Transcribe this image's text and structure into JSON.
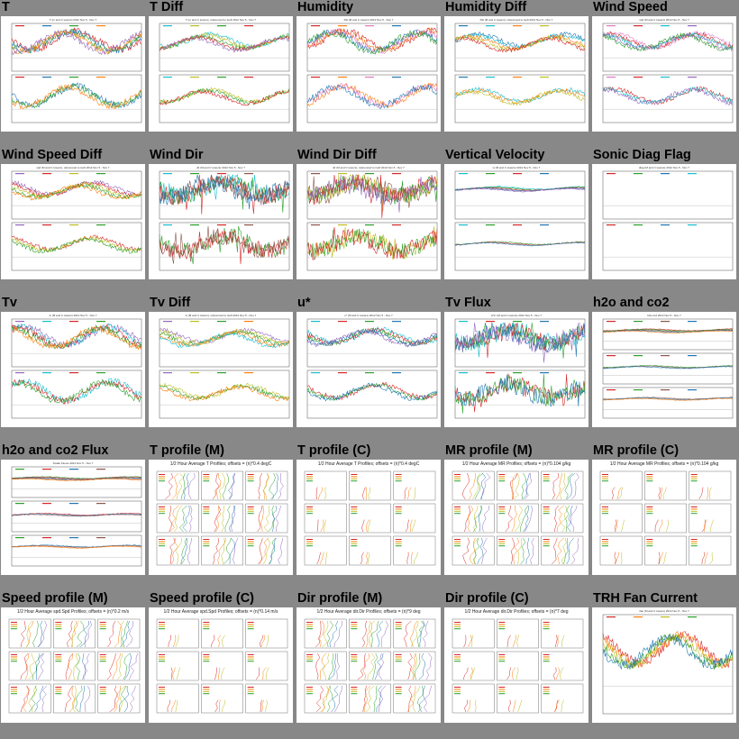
{
  "page": {
    "background": "#888888"
  },
  "thumbnails": [
    {
      "title": "T",
      "kind": "ts",
      "panels": 2,
      "overlap": "low",
      "colors": [
        "#d62728",
        "#1f77b4",
        "#2ca02c",
        "#ff7f0e",
        "#9467bd",
        "#e377c2"
      ],
      "caption": "T (m and C towers) 2012 Nov 5 - Nov 7"
    },
    {
      "title": "T Diff",
      "kind": "ts",
      "panels": 2,
      "overlap": "high",
      "colors": [
        "#17becf",
        "#bcbd22",
        "#2ca02c",
        "#d62728",
        "#9467bd",
        "#ff7f0e"
      ],
      "caption": "T (m and C towers), referenced to tsoft 2012 Nov 5 - Nov 7"
    },
    {
      "title": "Humidity",
      "kind": "ts",
      "panels": 2,
      "overlap": "low",
      "colors": [
        "#d62728",
        "#ff7f0e",
        "#e377c2",
        "#1f77b4",
        "#2ca02c",
        "#9467bd"
      ],
      "caption": "RH (M and C towers) 2012 Nov 5 - Nov 7"
    },
    {
      "title": "Humidity Diff",
      "kind": "ts",
      "panels": 2,
      "overlap": "high",
      "colors": [
        "#1f77b4",
        "#17becf",
        "#ff7f0e",
        "#bcbd22",
        "#d62728",
        "#2ca02c"
      ],
      "caption": "RH (M and C towers), referenced to tsoft 2012 Nov 5 - Nov 7"
    },
    {
      "title": "Wind Speed",
      "kind": "ts",
      "panels": 2,
      "overlap": "mid",
      "colors": [
        "#e377c2",
        "#d62728",
        "#17becf",
        "#9467bd",
        "#2ca02c",
        "#1f77b4"
      ],
      "caption": "spd (M and C towers) 2012 Nov 5 - Nov 7"
    },
    {
      "title": "Wind Speed Diff",
      "kind": "ts",
      "panels": 2,
      "overlap": "high",
      "colors": [
        "#9467bd",
        "#d62728",
        "#bcbd22",
        "#2ca02c",
        "#ff7f0e",
        "#17becf"
      ],
      "caption": "spd (M and C towers), referenced to tsoft 2012 Nov 5 - Nov 7"
    },
    {
      "title": "Wind Dir",
      "kind": "ts",
      "panels": 2,
      "overlap": "spiky",
      "colors": [
        "#17becf",
        "#2ca02c",
        "#d62728",
        "#8c564b",
        "#1f77b4",
        "#ff7f0e"
      ],
      "caption": "dir (M and C towers) 2012 Nov 5 - Nov 7"
    },
    {
      "title": "Wind Dir Diff",
      "kind": "ts",
      "panels": 2,
      "overlap": "spiky",
      "colors": [
        "#8c564b",
        "#bcbd22",
        "#2ca02c",
        "#d62728",
        "#9467bd",
        "#17becf"
      ],
      "caption": "dir (M and C towers), referenced to tsoft 2012 Nov 5 - Nov 7"
    },
    {
      "title": "Vertical Velocity",
      "kind": "ts",
      "panels": 2,
      "overlap": "flat",
      "colors": [
        "#17becf",
        "#2ca02c",
        "#d62728",
        "#1f77b4",
        "#9467bd",
        "#ff7f0e"
      ],
      "caption": "w (M and C towers) 2012 Nov 5 - Nov 7"
    },
    {
      "title": "Sonic Diag Flag",
      "kind": "ts",
      "panels": 2,
      "overlap": "none",
      "colors": [
        "#d62728",
        "#2ca02c",
        "#1f77b4",
        "#17becf",
        "#9467bd",
        "#ff7f0e"
      ],
      "caption": "diag (M and C towers) 2012 Nov 5 - Nov 7"
    },
    {
      "title": "Tv",
      "kind": "ts",
      "panels": 2,
      "overlap": "low",
      "colors": [
        "#9467bd",
        "#17becf",
        "#d62728",
        "#2ca02c",
        "#ff7f0e",
        "#1f77b4"
      ],
      "caption": "tc (M and C towers) 2012 Nov 5 - Nov 7"
    },
    {
      "title": "Tv Diff",
      "kind": "ts",
      "panels": 2,
      "overlap": "high",
      "colors": [
        "#9467bd",
        "#bcbd22",
        "#2ca02c",
        "#ff7f0e",
        "#17becf",
        "#d62728"
      ],
      "caption": "tc (M and C towers), referenced to tsoft 2012 Nov 5 - Nov 7"
    },
    {
      "title": "u*",
      "kind": "ts",
      "panels": 2,
      "overlap": "mid",
      "colors": [
        "#17becf",
        "#d62728",
        "#2ca02c",
        "#1f77b4",
        "#9467bd",
        "#ff7f0e"
      ],
      "caption": "u* (M and C towers) 2012 Nov 5 - Nov 7"
    },
    {
      "title": "Tv Flux",
      "kind": "ts",
      "panels": 2,
      "overlap": "spiky",
      "colors": [
        "#17becf",
        "#d62728",
        "#2ca02c",
        "#1f77b4",
        "#9467bd",
        "#ff7f0e"
      ],
      "caption": "w'tc' (M and C towers) 2012 Nov 5 - Nov 7"
    },
    {
      "title": "h2o and co2",
      "kind": "ts",
      "panels": 3,
      "overlap": "flat",
      "colors": [
        "#d62728",
        "#2ca02c",
        "#8c564b",
        "#1f77b4",
        "#ff7f0e",
        "#9467bd"
      ],
      "caption": "h2o,co2 2012 Nov 5 - Nov 7"
    },
    {
      "title": "h2o and co2 Flux",
      "kind": "ts",
      "panels": 3,
      "overlap": "flat",
      "colors": [
        "#2ca02c",
        "#d62728",
        "#1f77b4",
        "#8c564b",
        "#ff7f0e",
        "#9467bd"
      ],
      "caption": "Scalar Fluxes 2012 Nov 5 - Nov 7"
    },
    {
      "title": "T profile (M)",
      "kind": "prof",
      "style": "dense",
      "colors": [
        "#d62728",
        "#ff7f0e",
        "#bcbd22",
        "#2ca02c",
        "#1f77b4",
        "#9467bd"
      ],
      "caption": "1/2 Hour Average T Profiles; offsets = (n)*0.4 degC"
    },
    {
      "title": "T profile (C)",
      "kind": "prof",
      "style": "sparse",
      "colors": [
        "#d62728",
        "#ff7f0e",
        "#bcbd22",
        "#2ca02c",
        "#1f77b4",
        "#9467bd"
      ],
      "caption": "1/2 Hour Average T Profiles; offsets = (n)*0.4 degC"
    },
    {
      "title": "MR profile (M)",
      "kind": "prof",
      "style": "dense",
      "colors": [
        "#d62728",
        "#ff7f0e",
        "#bcbd22",
        "#2ca02c",
        "#1f77b4",
        "#9467bd"
      ],
      "caption": "1/2 Hour Average MR Profiles; offsets = (n)*0.104 g/kg"
    },
    {
      "title": "MR profile (C)",
      "kind": "prof",
      "style": "sparse",
      "colors": [
        "#d62728",
        "#ff7f0e",
        "#bcbd22",
        "#2ca02c",
        "#1f77b4",
        "#9467bd"
      ],
      "caption": "1/2 Hour Average MR Profiles; offsets = (n)*0.104 g/kg"
    },
    {
      "title": "Speed profile (M)",
      "kind": "prof",
      "style": "dense",
      "colors": [
        "#d62728",
        "#ff7f0e",
        "#bcbd22",
        "#2ca02c",
        "#1f77b4",
        "#9467bd"
      ],
      "caption": "1/2 Hour Average spd.Spd Profiles; offsets = (n)*0.2 m/s"
    },
    {
      "title": "Speed profile (C)",
      "kind": "prof",
      "style": "sparse",
      "colors": [
        "#d62728",
        "#ff7f0e",
        "#bcbd22",
        "#2ca02c",
        "#1f77b4",
        "#9467bd"
      ],
      "caption": "1/2 Hour Average spd.Spd Profiles; offsets = (n)*0.14 m/s"
    },
    {
      "title": "Dir profile (M)",
      "kind": "prof",
      "style": "dense",
      "colors": [
        "#d62728",
        "#ff7f0e",
        "#bcbd22",
        "#2ca02c",
        "#1f77b4",
        "#9467bd"
      ],
      "caption": "1/2 Hour Average dir.Dir Profiles; offsets = (n)*9 deg"
    },
    {
      "title": "Dir profile (C)",
      "kind": "prof",
      "style": "sparse",
      "colors": [
        "#d62728",
        "#ff7f0e",
        "#bcbd22",
        "#2ca02c",
        "#1f77b4",
        "#9467bd"
      ],
      "caption": "1/2 Hour Average dir.Dir Profiles; offsets = (n)*7 deg"
    },
    {
      "title": "TRH Fan Current",
      "kind": "ts",
      "panels": 1,
      "overlap": "mid",
      "colors": [
        "#d62728",
        "#ff7f0e",
        "#bcbd22",
        "#2ca02c",
        "#1f77b4",
        "#9467bd"
      ],
      "caption": "ifan (M and C towers) 2012 Nov 5 - Nov 7"
    }
  ]
}
